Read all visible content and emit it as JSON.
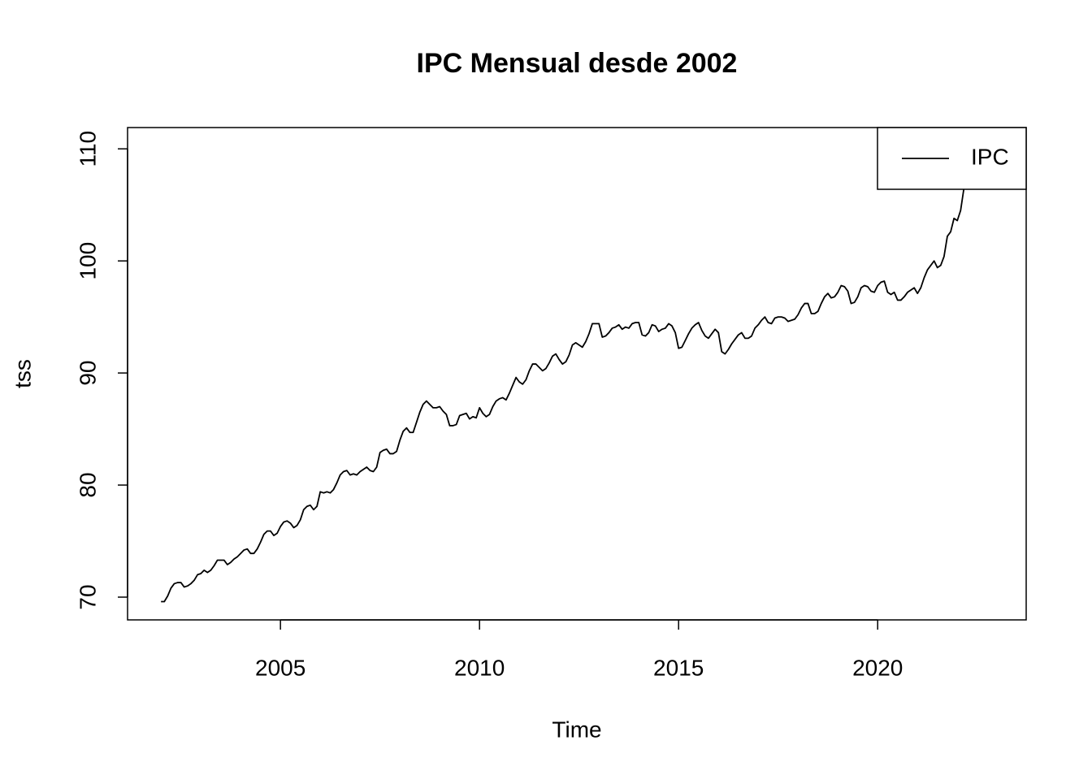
{
  "chart_data": {
    "type": "line",
    "title": "IPC Mensual desde 2002",
    "xlabel": "Time",
    "ylabel": "tss",
    "legend": "topright",
    "x": [
      2002,
      2002.083,
      2002.167,
      2002.25,
      2002.333,
      2002.417,
      2002.5,
      2002.583,
      2002.667,
      2002.75,
      2002.833,
      2002.917,
      2003,
      2003.083,
      2003.167,
      2003.25,
      2003.333,
      2003.417,
      2003.5,
      2003.583,
      2003.667,
      2003.75,
      2003.833,
      2003.917,
      2004,
      2004.083,
      2004.167,
      2004.25,
      2004.333,
      2004.417,
      2004.5,
      2004.583,
      2004.667,
      2004.75,
      2004.833,
      2004.917,
      2005,
      2005.083,
      2005.167,
      2005.25,
      2005.333,
      2005.417,
      2005.5,
      2005.583,
      2005.667,
      2005.75,
      2005.833,
      2005.917,
      2006,
      2006.083,
      2006.167,
      2006.25,
      2006.333,
      2006.417,
      2006.5,
      2006.583,
      2006.667,
      2006.75,
      2006.833,
      2006.917,
      2007,
      2007.083,
      2007.167,
      2007.25,
      2007.333,
      2007.417,
      2007.5,
      2007.583,
      2007.667,
      2007.75,
      2007.833,
      2007.917,
      2008,
      2008.083,
      2008.167,
      2008.25,
      2008.333,
      2008.417,
      2008.5,
      2008.583,
      2008.667,
      2008.75,
      2008.833,
      2008.917,
      2009,
      2009.083,
      2009.167,
      2009.25,
      2009.333,
      2009.417,
      2009.5,
      2009.583,
      2009.667,
      2009.75,
      2009.833,
      2009.917,
      2010,
      2010.083,
      2010.167,
      2010.25,
      2010.333,
      2010.417,
      2010.5,
      2010.583,
      2010.667,
      2010.75,
      2010.833,
      2010.917,
      2011,
      2011.083,
      2011.167,
      2011.25,
      2011.333,
      2011.417,
      2011.5,
      2011.583,
      2011.667,
      2011.75,
      2011.833,
      2011.917,
      2012,
      2012.083,
      2012.167,
      2012.25,
      2012.333,
      2012.417,
      2012.5,
      2012.583,
      2012.667,
      2012.75,
      2012.833,
      2012.917,
      2013,
      2013.083,
      2013.167,
      2013.25,
      2013.333,
      2013.417,
      2013.5,
      2013.583,
      2013.667,
      2013.75,
      2013.833,
      2013.917,
      2014,
      2014.083,
      2014.167,
      2014.25,
      2014.333,
      2014.417,
      2014.5,
      2014.583,
      2014.667,
      2014.75,
      2014.833,
      2014.917,
      2015,
      2015.083,
      2015.167,
      2015.25,
      2015.333,
      2015.417,
      2015.5,
      2015.583,
      2015.667,
      2015.75,
      2015.833,
      2015.917,
      2016,
      2016.083,
      2016.167,
      2016.25,
      2016.333,
      2016.417,
      2016.5,
      2016.583,
      2016.667,
      2016.75,
      2016.833,
      2016.917,
      2017,
      2017.083,
      2017.167,
      2017.25,
      2017.333,
      2017.417,
      2017.5,
      2017.583,
      2017.667,
      2017.75,
      2017.833,
      2017.917,
      2018,
      2018.083,
      2018.167,
      2018.25,
      2018.333,
      2018.417,
      2018.5,
      2018.583,
      2018.667,
      2018.75,
      2018.833,
      2018.917,
      2019,
      2019.083,
      2019.167,
      2019.25,
      2019.333,
      2019.417,
      2019.5,
      2019.583,
      2019.667,
      2019.75,
      2019.833,
      2019.917,
      2020,
      2020.083,
      2020.167,
      2020.25,
      2020.333,
      2020.417,
      2020.5,
      2020.583,
      2020.667,
      2020.75,
      2020.833,
      2020.917,
      2021,
      2021.083,
      2021.167,
      2021.25,
      2021.333,
      2021.417,
      2021.5,
      2021.583,
      2021.667,
      2021.75,
      2021.833,
      2021.917,
      2022,
      2022.083,
      2022.167,
      2022.25,
      2022.333,
      2022.417,
      2022.5
    ],
    "series": [
      {
        "name": "IPC",
        "color": "#000000",
        "values": [
          69.6,
          69.6,
          70.1,
          70.8,
          71.2,
          71.3,
          71.3,
          70.9,
          71.0,
          71.2,
          71.5,
          72.0,
          72.1,
          72.4,
          72.2,
          72.4,
          72.8,
          73.3,
          73.3,
          73.3,
          72.9,
          73.1,
          73.4,
          73.6,
          73.9,
          74.2,
          74.3,
          73.9,
          73.9,
          74.3,
          74.9,
          75.6,
          75.9,
          75.9,
          75.5,
          75.7,
          76.3,
          76.7,
          76.8,
          76.6,
          76.2,
          76.4,
          76.9,
          77.8,
          78.1,
          78.2,
          77.8,
          78.1,
          79.4,
          79.3,
          79.4,
          79.3,
          79.6,
          80.2,
          80.9,
          81.2,
          81.3,
          80.9,
          81.0,
          80.9,
          81.2,
          81.4,
          81.6,
          81.3,
          81.2,
          81.6,
          82.9,
          83.1,
          83.2,
          82.8,
          82.8,
          83.0,
          84.0,
          84.8,
          85.1,
          84.7,
          84.7,
          85.6,
          86.5,
          87.2,
          87.5,
          87.2,
          86.9,
          86.9,
          87.0,
          86.6,
          86.3,
          85.3,
          85.3,
          85.4,
          86.2,
          86.3,
          86.4,
          85.9,
          86.1,
          86.0,
          86.9,
          86.4,
          86.1,
          86.3,
          87.0,
          87.5,
          87.7,
          87.8,
          87.6,
          88.2,
          88.9,
          89.6,
          89.2,
          89.0,
          89.4,
          90.2,
          90.8,
          90.8,
          90.5,
          90.2,
          90.4,
          90.9,
          91.5,
          91.7,
          91.2,
          90.8,
          91.0,
          91.6,
          92.5,
          92.7,
          92.5,
          92.3,
          92.8,
          93.5,
          94.4,
          94.4,
          94.4,
          93.2,
          93.3,
          93.6,
          94.0,
          94.1,
          94.3,
          93.9,
          94.1,
          94.0,
          94.4,
          94.5,
          94.5,
          93.4,
          93.3,
          93.6,
          94.3,
          94.2,
          93.7,
          93.9,
          94.0,
          94.4,
          94.2,
          93.6,
          92.2,
          92.3,
          92.9,
          93.5,
          94.0,
          94.3,
          94.5,
          93.8,
          93.3,
          93.1,
          93.5,
          93.9,
          93.6,
          91.9,
          91.7,
          92.1,
          92.6,
          93.0,
          93.4,
          93.6,
          93.1,
          93.1,
          93.3,
          94.0,
          94.3,
          94.7,
          95.0,
          94.5,
          94.4,
          94.9,
          95.0,
          95.0,
          94.9,
          94.6,
          94.7,
          94.8,
          95.2,
          95.8,
          96.2,
          96.2,
          95.3,
          95.3,
          95.5,
          96.2,
          96.8,
          97.1,
          96.7,
          96.8,
          97.2,
          97.8,
          97.7,
          97.3,
          96.2,
          96.3,
          96.8,
          97.6,
          97.8,
          97.7,
          97.3,
          97.2,
          97.8,
          98.1,
          98.2,
          97.2,
          97.0,
          97.2,
          96.5,
          96.5,
          96.8,
          97.2,
          97.4,
          97.6,
          97.1,
          97.6,
          98.5,
          99.2,
          99.6,
          100.0,
          99.4,
          99.6,
          100.4,
          102.2,
          102.6,
          103.8,
          103.6,
          104.5,
          106.5,
          108.0,
          109.0,
          109.7,
          110.3
        ]
      }
    ],
    "xlim": [
      2001.16,
      2023.73
    ],
    "ylim": [
      67.97,
      111.9
    ],
    "xticks": [
      2005,
      2010,
      2015,
      2020
    ],
    "yticks": [
      70,
      80,
      90,
      100,
      110
    ]
  }
}
